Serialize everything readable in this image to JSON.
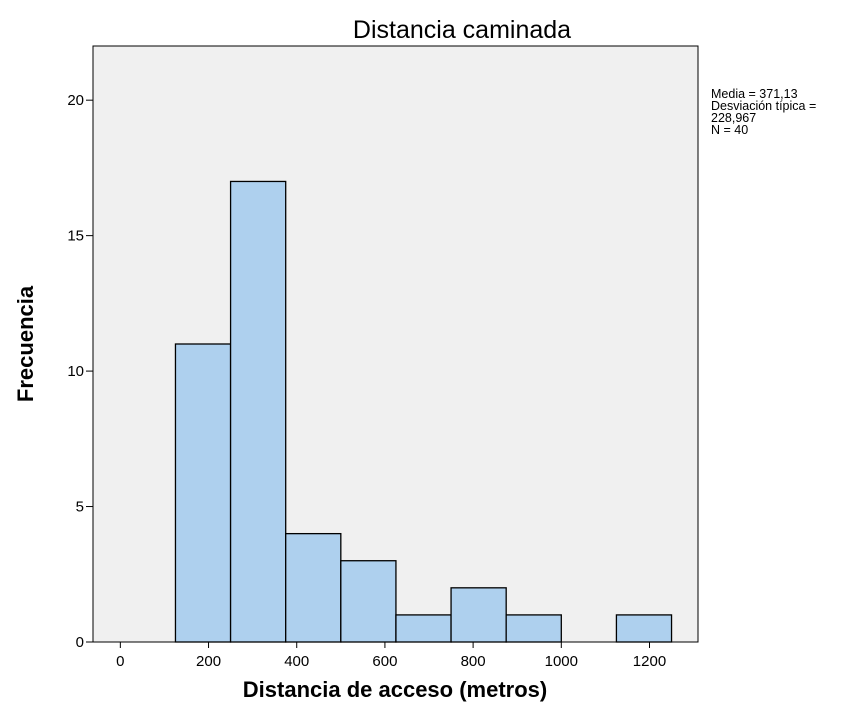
{
  "chart_data": {
    "type": "bar",
    "title": "Distancia caminada",
    "xlabel": "Distancia de acceso (metros)",
    "ylabel": "Frecuencia",
    "xlim": [
      -62,
      1310
    ],
    "ylim": [
      0,
      22
    ],
    "x_ticks": [
      0,
      200,
      400,
      600,
      800,
      1000,
      1200
    ],
    "y_ticks": [
      0,
      5,
      10,
      15,
      20
    ],
    "bin_width": 125,
    "bins": [
      {
        "start": 125,
        "end": 250,
        "count": 11
      },
      {
        "start": 250,
        "end": 375,
        "count": 17
      },
      {
        "start": 375,
        "end": 500,
        "count": 4
      },
      {
        "start": 500,
        "end": 625,
        "count": 3
      },
      {
        "start": 625,
        "end": 750,
        "count": 1
      },
      {
        "start": 750,
        "end": 875,
        "count": 2
      },
      {
        "start": 875,
        "end": 1000,
        "count": 1
      },
      {
        "start": 1000,
        "end": 1125,
        "count": 0
      },
      {
        "start": 1125,
        "end": 1250,
        "count": 1
      }
    ],
    "bar_color": "#aed0ee",
    "plot_background": "#f0f0f0",
    "grid": false,
    "stats": [
      "Media = 371,13",
      "Desviación típica =",
      "228,967",
      "N = 40"
    ]
  }
}
